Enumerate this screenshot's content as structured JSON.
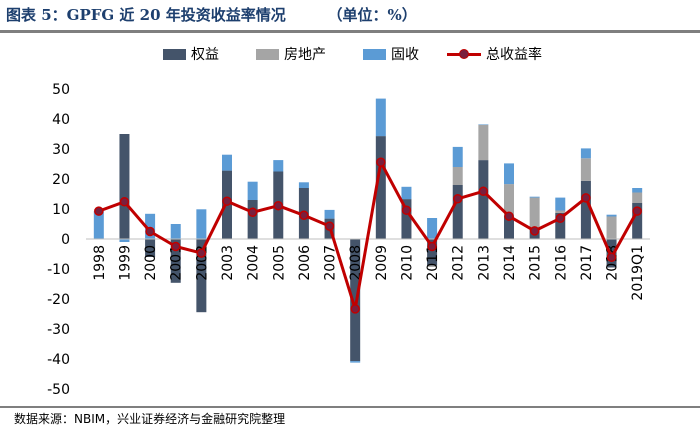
{
  "title": "图表 5：GPFG 近 20 年投资收益率情况        （单位：%）",
  "source": "数据来源：NBIM，兴业证券经济与金融研究院整理",
  "colors": {
    "equity": "#44546a",
    "real_estate": "#a5a5a5",
    "fixed_income": "#5b9bd5",
    "total_line": "#c00000",
    "total_marker": "#7a1f3d"
  },
  "chart_data": {
    "type": "bar",
    "stacked": true,
    "categories": [
      "1998",
      "1999",
      "2000",
      "2001",
      "2002",
      "2003",
      "2004",
      "2005",
      "2006",
      "2007",
      "2008",
      "2009",
      "2010",
      "2011",
      "2012",
      "2013",
      "2014",
      "2015",
      "2016",
      "2017",
      "2018",
      "2019Q1"
    ],
    "series": [
      {
        "name": "权益",
        "type": "bar",
        "values": [
          0,
          35,
          -6,
          -14.6,
          -24.4,
          22.8,
          13.0,
          22.5,
          17.0,
          6.8,
          -40.7,
          34.3,
          13.3,
          -8.8,
          18.0,
          26.3,
          7.9,
          3.8,
          8.7,
          19.4,
          -9.5,
          12.0
        ]
      },
      {
        "name": "房地产",
        "type": "bar",
        "values": [
          0,
          0,
          0,
          0,
          0,
          0,
          0,
          0,
          0,
          0,
          0,
          0,
          0,
          -0.5,
          6.0,
          11.8,
          10.4,
          10.0,
          0.8,
          7.5,
          7.5,
          3.5
        ]
      },
      {
        "name": "固收",
        "type": "bar",
        "values": [
          9.3,
          -1.0,
          8.4,
          5.0,
          9.9,
          5.3,
          6.1,
          3.8,
          1.9,
          2.9,
          -0.5,
          12.5,
          4.1,
          7.0,
          6.7,
          0.1,
          6.9,
          0.3,
          4.3,
          3.3,
          0.6,
          1.5
        ]
      },
      {
        "name": "总收益率",
        "type": "line",
        "values": [
          9.3,
          12.4,
          2.5,
          -2.5,
          -4.7,
          12.6,
          8.9,
          11.1,
          7.9,
          4.3,
          -23.3,
          25.6,
          9.6,
          -2.5,
          13.4,
          15.9,
          7.6,
          2.7,
          6.9,
          13.7,
          -6.1,
          9.3
        ]
      }
    ],
    "xlabel": "",
    "ylabel": "",
    "ylim": [
      -50,
      50
    ],
    "yticks": [
      "50",
      "40",
      "30",
      "20",
      "10",
      "0",
      "-10",
      "-20",
      "-30",
      "-40",
      "-50"
    ],
    "grid": false,
    "legend_position": "top"
  }
}
